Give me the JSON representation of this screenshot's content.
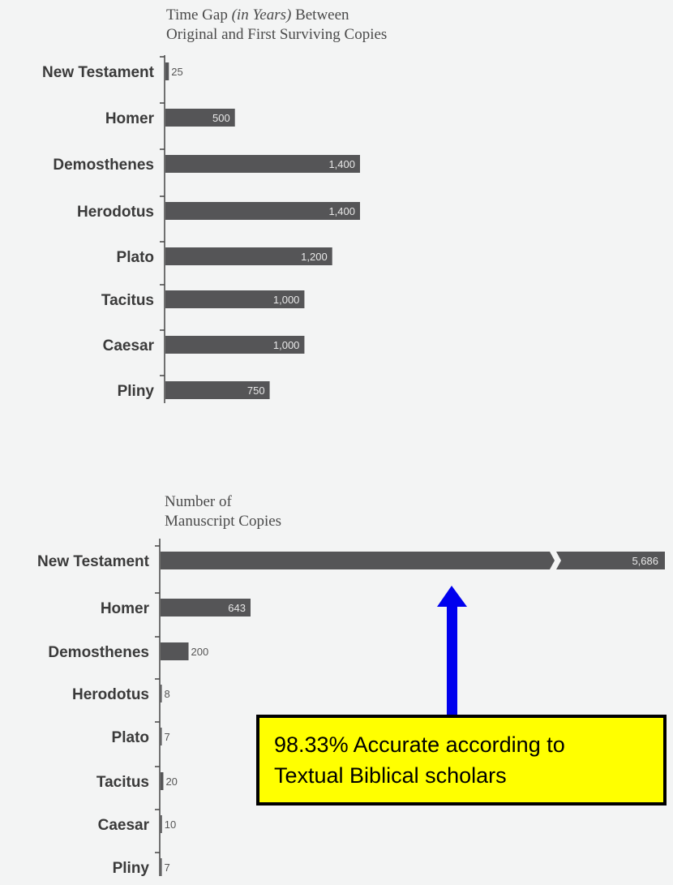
{
  "chart_data": [
    {
      "type": "bar",
      "title_pre": "Time Gap ",
      "title_emph": "(in Years)",
      "title_post": " Between",
      "title_line2": "Original and First Surviving Copies",
      "categories": [
        "New Testament",
        "Homer",
        "Demosthenes",
        "Herodotus",
        "Plato",
        "Tacitus",
        "Caesar",
        "Pliny"
      ],
      "values": [
        25,
        500,
        1400,
        1400,
        1200,
        1000,
        1000,
        750
      ],
      "value_labels": [
        "25",
        "500",
        "1,400",
        "1,400",
        "1,200",
        "1,000",
        "1,000",
        "750"
      ]
    },
    {
      "type": "bar",
      "title_line1": "Number of",
      "title_line2": "Manuscript Copies",
      "categories": [
        "New Testament",
        "Homer",
        "Demosthenes",
        "Herodotus",
        "Plato",
        "Tacitus",
        "Caesar",
        "Pliny"
      ],
      "values": [
        5686,
        643,
        200,
        8,
        7,
        20,
        10,
        7
      ],
      "value_labels": [
        "5,686",
        "643",
        "200",
        "8",
        "7",
        "20",
        "10",
        "7"
      ],
      "axis_break": true
    }
  ],
  "callout": {
    "text_line1": "98.33% Accurate according to",
    "text_line2": "Textual Biblical scholars",
    "arrow_color": "#0000ee",
    "box_color": "#ffff00"
  },
  "colors": {
    "bar": "#555557",
    "background": "#f3f4f4"
  }
}
